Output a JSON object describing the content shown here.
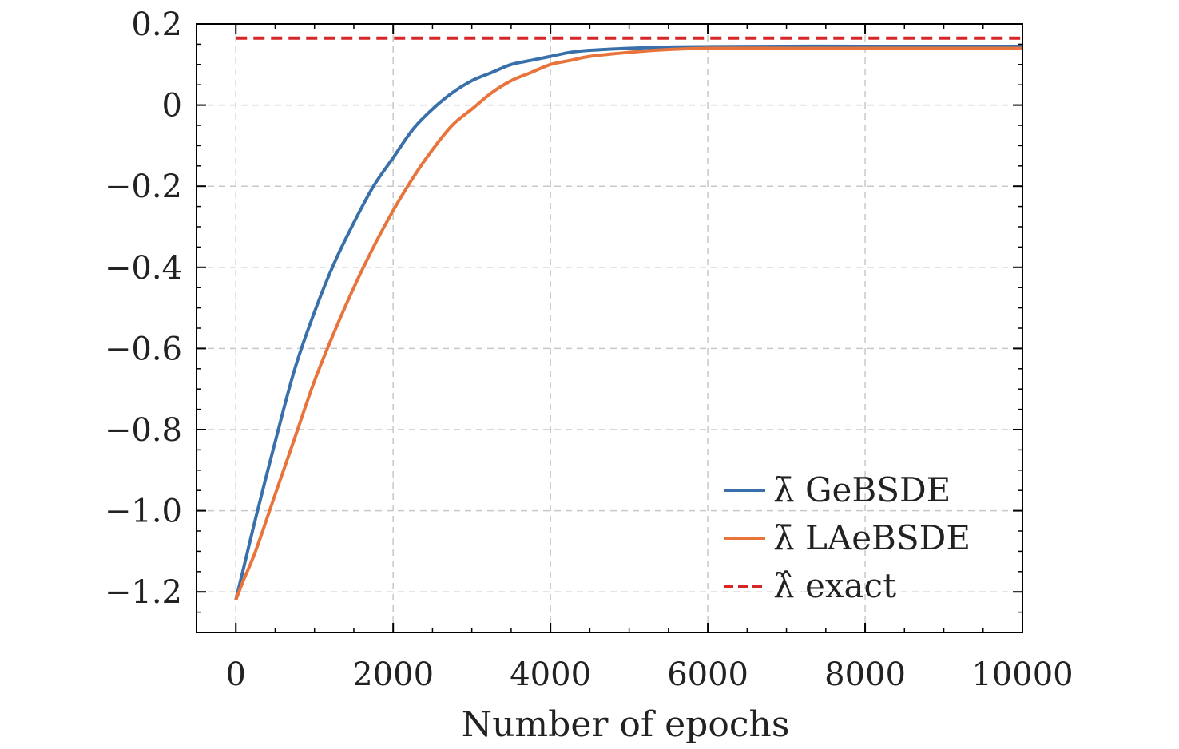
{
  "chart_data": {
    "type": "line",
    "title": "",
    "xlabel": "Number of epochs",
    "ylabel": "",
    "xlim": [
      -500,
      10000
    ],
    "ylim": [
      -1.3,
      0.2
    ],
    "xticks": [
      0,
      2000,
      4000,
      6000,
      8000,
      10000
    ],
    "xtick_labels": [
      "0",
      "2000",
      "4000",
      "6000",
      "8000",
      "10000"
    ],
    "yticks": [
      0.2,
      0,
      -0.2,
      -0.4,
      -0.6,
      -0.8,
      -1.0,
      -1.2
    ],
    "ytick_labels": [
      "0.2",
      "0",
      "−0.2",
      "−0.4",
      "−0.6",
      "−0.8",
      "−1.0",
      "−1.2"
    ],
    "grid": true,
    "legend_position": "bottom-right",
    "series": [
      {
        "name": "λ̄ GeBSDE",
        "legend_symbol": "λ̄",
        "legend_text": "GeBSDE",
        "color": "#3a70aa",
        "style": "solid",
        "x": [
          0,
          100,
          250,
          500,
          750,
          1000,
          1250,
          1500,
          1750,
          2000,
          2250,
          2500,
          2750,
          3000,
          3250,
          3500,
          3750,
          4000,
          4250,
          4500,
          5000,
          5500,
          6000,
          7000,
          8000,
          9000,
          10000
        ],
        "y": [
          -1.22,
          -1.14,
          -1.02,
          -0.83,
          -0.65,
          -0.51,
          -0.39,
          -0.29,
          -0.2,
          -0.13,
          -0.06,
          -0.01,
          0.03,
          0.06,
          0.08,
          0.1,
          0.11,
          0.12,
          0.13,
          0.135,
          0.14,
          0.143,
          0.144,
          0.145,
          0.145,
          0.145,
          0.145
        ]
      },
      {
        "name": "λ̄ LAeBSDE",
        "legend_symbol": "λ̄",
        "legend_text": "LAeBSDE",
        "color": "#e8743b",
        "style": "solid",
        "x": [
          0,
          100,
          250,
          500,
          750,
          1000,
          1250,
          1500,
          1750,
          2000,
          2250,
          2500,
          2750,
          3000,
          3250,
          3500,
          3750,
          4000,
          4250,
          4500,
          5000,
          5500,
          6000,
          7000,
          8000,
          9000,
          10000
        ],
        "y": [
          -1.22,
          -1.17,
          -1.1,
          -0.96,
          -0.82,
          -0.68,
          -0.56,
          -0.45,
          -0.35,
          -0.26,
          -0.18,
          -0.11,
          -0.05,
          -0.01,
          0.03,
          0.06,
          0.08,
          0.1,
          0.11,
          0.12,
          0.13,
          0.137,
          0.14,
          0.14,
          0.14,
          0.14,
          0.14
        ]
      },
      {
        "name": "λ̂ exact",
        "legend_symbol": "λ̂",
        "legend_text": "exact",
        "color": "#d62728",
        "style": "dashed",
        "x": [
          0,
          10000
        ],
        "y": [
          0.165,
          0.165
        ]
      }
    ]
  }
}
